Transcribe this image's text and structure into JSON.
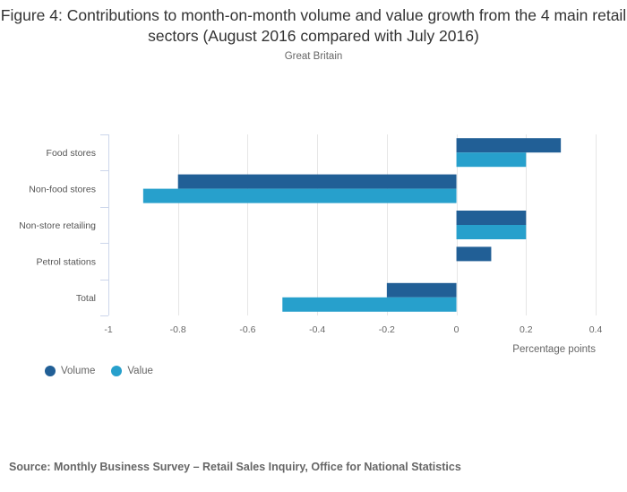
{
  "colors": {
    "volume": "#215f96",
    "value": "#27a0cc",
    "grid": "#e6e6e6",
    "axis": "#ccd6eb"
  },
  "chart_data": {
    "type": "bar",
    "orientation": "horizontal",
    "title": "Figure 4: Contributions to month-on-month volume and value growth from the 4 main retail sectors (August 2016 compared with July 2016)",
    "subtitle": "Great Britain",
    "categories": [
      "Food stores",
      "Non-food stores",
      "Non-store retailing",
      "Petrol stations",
      "Total"
    ],
    "series": [
      {
        "name": "Volume",
        "values": [
          0.3,
          -0.8,
          0.2,
          0.1,
          -0.2
        ]
      },
      {
        "name": "Value",
        "values": [
          0.2,
          -0.9,
          0.2,
          0.0,
          -0.5
        ]
      }
    ],
    "xlabel": "Percentage points",
    "ylabel": "",
    "xlim": [
      -1,
      0.4
    ],
    "xticks": [
      -1,
      -0.8,
      -0.6,
      -0.4,
      -0.2,
      0,
      0.2,
      0.4
    ],
    "xtick_labels": [
      "-1",
      "-0.8",
      "-0.6",
      "-0.4",
      "-0.2",
      "0",
      "0.2",
      "0.4"
    ],
    "grid": true,
    "legend_position": "bottom-left",
    "source": "Source: Monthly Business Survey – Retail Sales Inquiry, Office for National Statistics"
  }
}
